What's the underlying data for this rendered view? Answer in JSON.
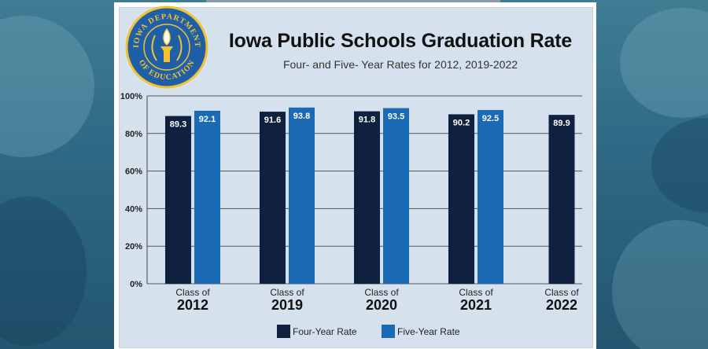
{
  "header": {
    "seal_text_top": "IOWA DEPARTMENT",
    "seal_text_bottom": "OF EDUCATION",
    "title": "Iowa Public Schools Graduation Rate",
    "subtitle": "Four- and Five- Year Rates for 2012, 2019-2022"
  },
  "colors": {
    "four_year": "#10203f",
    "five_year": "#1a6ab5",
    "seal_blue": "#1f5fa8",
    "seal_gold": "#f2c230"
  },
  "chart_data": {
    "type": "bar",
    "title": "Iowa Public Schools Graduation Rate",
    "subtitle": "Four- and Five- Year Rates for 2012, 2019-2022",
    "categories": [
      {
        "prefix": "Class of",
        "year": "2012"
      },
      {
        "prefix": "Class of",
        "year": "2019"
      },
      {
        "prefix": "Class of",
        "year": "2020"
      },
      {
        "prefix": "Class of",
        "year": "2021"
      },
      {
        "prefix": "Class of",
        "year": "2022"
      }
    ],
    "series": [
      {
        "name": "Four-Year Rate",
        "values": [
          89.3,
          91.6,
          91.8,
          90.2,
          89.9
        ],
        "labels": [
          "89.3",
          "91.6",
          "91.8",
          "90.2",
          "89.9"
        ]
      },
      {
        "name": "Five-Year Rate",
        "values": [
          92.1,
          93.8,
          93.5,
          92.5,
          null
        ],
        "labels": [
          "92.1",
          "93.8",
          "93.5",
          "92.5",
          ""
        ]
      }
    ],
    "yticks": [
      "0%",
      "20%",
      "40%",
      "60%",
      "80%",
      "100%"
    ],
    "ylim": [
      0,
      100
    ],
    "grid": true,
    "legend_position": "bottom"
  }
}
